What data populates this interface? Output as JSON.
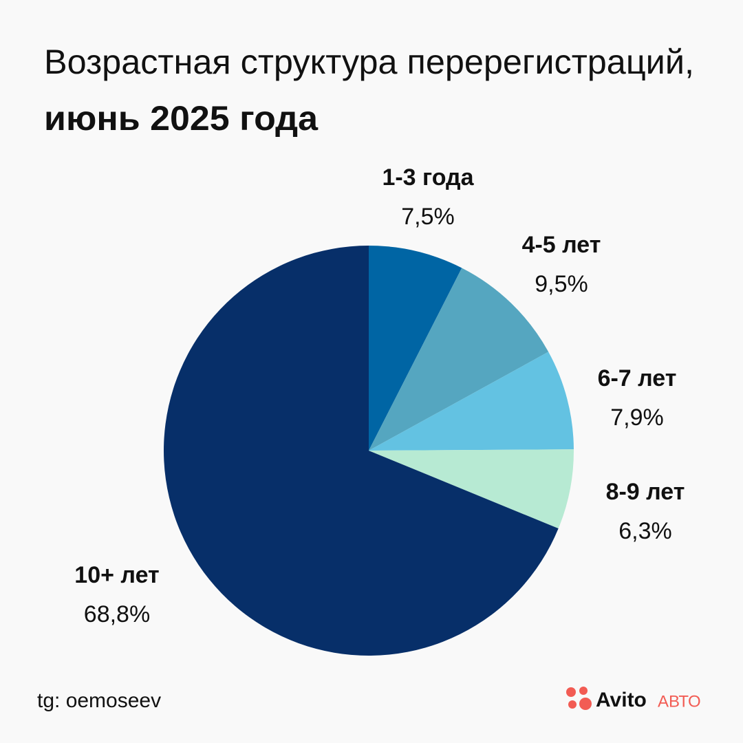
{
  "chart_data": {
    "type": "pie",
    "title": "Возрастная структура перерегистраций,",
    "subtitle": "июнь 2025 года",
    "categories": [
      "1-3 года",
      "4-5 лет",
      "6-7 лет",
      "8-9 лет",
      "10+ лет"
    ],
    "values": [
      7.5,
      9.5,
      7.9,
      6.3,
      68.8
    ],
    "value_labels": [
      "7,5%",
      "9,5%",
      "7,9%",
      "6,3%",
      "68,8%"
    ],
    "colors": [
      "#0065a4",
      "#55a6c0",
      "#63c2e2",
      "#b7ead3",
      "#072f69"
    ]
  },
  "footer": {
    "source": "tg: oemoseev",
    "brand": "Avito",
    "brand_suffix": "АВТО"
  }
}
